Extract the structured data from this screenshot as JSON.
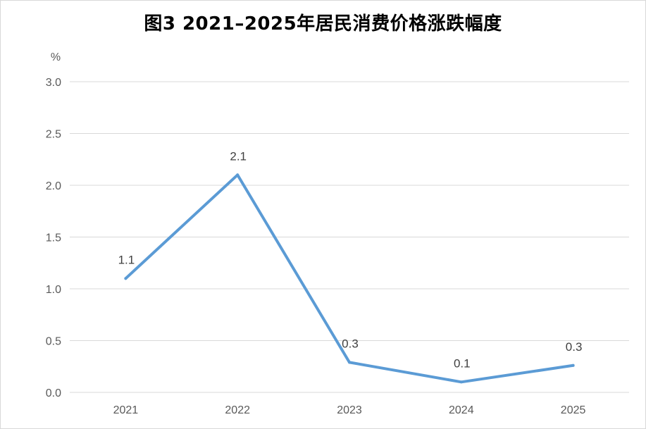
{
  "chart_data": {
    "type": "line",
    "title": "图3  2021–2025年居民消费价格涨跌幅度",
    "y_unit": "%",
    "categories": [
      "2021",
      "2022",
      "2023",
      "2024",
      "2025"
    ],
    "series": [
      {
        "values": [
          1.1,
          2.1,
          0.29,
          0.1,
          0.26
        ],
        "labels": [
          "1.1",
          "2.1",
          "0.3",
          "0.1",
          "0.3"
        ]
      }
    ],
    "ylim": [
      0,
      3
    ],
    "yticks": [
      "0.0",
      "0.5",
      "1.0",
      "1.5",
      "2.0",
      "2.5",
      "3.0"
    ],
    "grid": true,
    "colors": {
      "line": "#5b9bd5",
      "grid": "#d9d9d9",
      "axis_text": "#595959"
    }
  }
}
